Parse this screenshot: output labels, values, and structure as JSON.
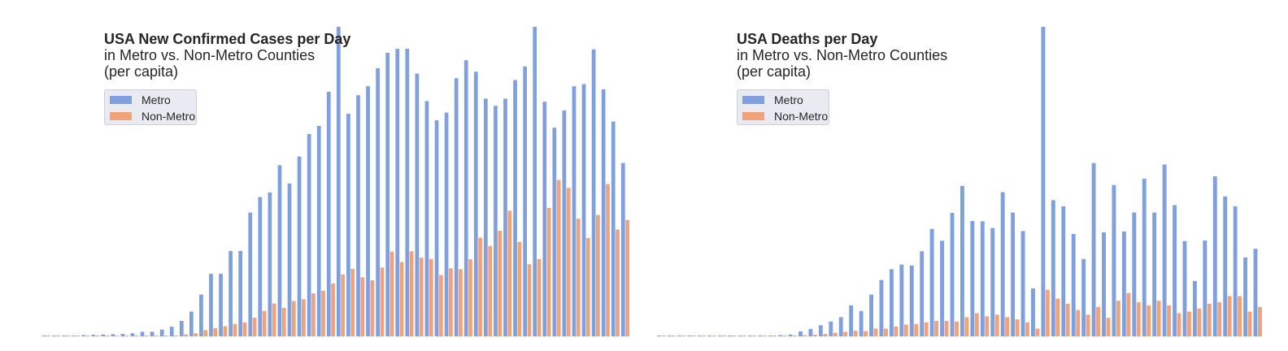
{
  "colors": {
    "metro": "#7fa0dd",
    "non_metro": "#f0a27b",
    "text": "#262626",
    "legend_bg": "#eaeaf2"
  },
  "chart_data": [
    {
      "type": "bar",
      "title": "USA New Confirmed Cases per Day",
      "subtitle_lines": [
        "in Metro vs. Non-Metro Counties",
        "(per capita)"
      ],
      "legend_position": "upper-left",
      "grid": false,
      "ylim": [
        0,
        100
      ],
      "series": [
        {
          "name": "Metro",
          "values": [
            0.1,
            0.1,
            0.1,
            0.2,
            0.4,
            0.5,
            0.6,
            0.7,
            0.8,
            1,
            1.5,
            1.5,
            2.2,
            3.1,
            5,
            8,
            13.5,
            20.2,
            20.2,
            27.6,
            27.6,
            40,
            45,
            46.5,
            55.3,
            49.4,
            58.1,
            65.4,
            68,
            79,
            100,
            71.9,
            77.9,
            80.8,
            86.6,
            91.6,
            92.9,
            92.9,
            84.9,
            76,
            69.8,
            72.3,
            83.4,
            89.2,
            85.5,
            76.8,
            74.5,
            76.8,
            82.8,
            87.2,
            100,
            75.8,
            67.4,
            73,
            80.8,
            81.5,
            92.7,
            79.8,
            69.4,
            56
          ]
        },
        {
          "name": "Non-Metro",
          "values": [
            0,
            0,
            0,
            0,
            0,
            0,
            0,
            0,
            0.1,
            0.1,
            0.1,
            0.1,
            0.2,
            0.2,
            0.6,
            1,
            2,
            2.6,
            3.3,
            4,
            4.5,
            6,
            8.2,
            10.6,
            9.2,
            11.4,
            12,
            13.9,
            14.8,
            17.1,
            20,
            21.8,
            19.1,
            18.1,
            22.2,
            27.4,
            24,
            27.5,
            25.4,
            25,
            19.8,
            22,
            21.7,
            24.9,
            31.9,
            29.2,
            34.1,
            40.6,
            30.5,
            23.3,
            25,
            41.5,
            50.5,
            48,
            38,
            31.8,
            39.2,
            49.2,
            34.5,
            37.6
          ]
        }
      ]
    },
    {
      "type": "bar",
      "title": "USA Deaths per Day",
      "subtitle_lines": [
        "in Metro vs. Non-Metro Counties",
        "(per capita)"
      ],
      "legend_position": "upper-left",
      "grid": false,
      "ylim": [
        0,
        100
      ],
      "series": [
        {
          "name": "Metro",
          "values": [
            0,
            0,
            0,
            0,
            0,
            0,
            0,
            0,
            0,
            0.1,
            0.1,
            0.2,
            0.4,
            0.6,
            1.6,
            2.4,
            3.6,
            4.8,
            6.2,
            10,
            8.2,
            13.5,
            18.2,
            21.7,
            23.2,
            22.9,
            27.5,
            34.7,
            30.9,
            39.9,
            48.6,
            37.3,
            37.2,
            35,
            46.6,
            40,
            34,
            15.5,
            100,
            44,
            42,
            33.1,
            25,
            56,
            33.6,
            48.9,
            33.9,
            40,
            50.9,
            40,
            55.5,
            42.4,
            30.8,
            17.9,
            31,
            51.7,
            45.2,
            42,
            25.5,
            28.3
          ]
        },
        {
          "name": "Non-Metro",
          "values": [
            0,
            0,
            0,
            0,
            0,
            0,
            0,
            0,
            0,
            0,
            0,
            0,
            0.2,
            0.2,
            0.4,
            0.5,
            0.8,
            1.2,
            1.5,
            1.8,
            1.7,
            2.5,
            2.5,
            3.2,
            3.8,
            4,
            4.5,
            5,
            5,
            4.8,
            6.2,
            7.5,
            6.5,
            7,
            6.2,
            5.5,
            4.5,
            2.5,
            15,
            12.2,
            10.5,
            8.5,
            7,
            9.5,
            6,
            11.5,
            14,
            11,
            10,
            11.5,
            10,
            7.5,
            8,
            9,
            10.5,
            11,
            13,
            13,
            8,
            9.5
          ]
        }
      ]
    }
  ]
}
